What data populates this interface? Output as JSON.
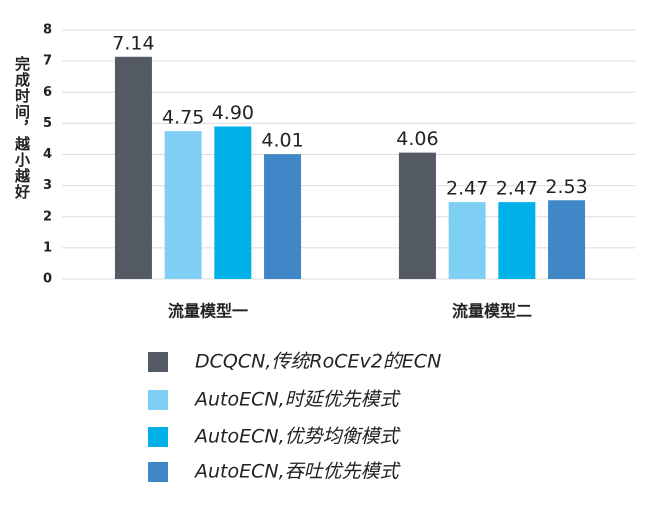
{
  "chart_data": {
    "type": "bar",
    "y_label": "完成时间，越小越好",
    "categories": [
      "流量模型一",
      "流量模型二"
    ],
    "series": [
      {
        "name": "DCQCN,传统RoCEv2的ECN",
        "color": "#545a63",
        "values": [
          7.14,
          4.06
        ],
        "value_labels": [
          "7.14",
          "4.06"
        ]
      },
      {
        "name": "AutoECN,时延优先模式",
        "color": "#7fcff5",
        "values": [
          4.75,
          2.47
        ],
        "value_labels": [
          "4.75",
          "2.47"
        ]
      },
      {
        "name": "AutoECN,优势均衡模式",
        "color": "#00b0e8",
        "values": [
          4.9,
          2.47
        ],
        "value_labels": [
          "4.90",
          "2.47"
        ]
      },
      {
        "name": "AutoECN,吞吐优先模式",
        "color": "#3f87c6",
        "values": [
          4.01,
          2.53
        ],
        "value_labels": [
          "4.01",
          "2.53"
        ]
      }
    ],
    "ylim": [
      0,
      8
    ],
    "yticks": [
      0,
      1,
      2,
      3,
      4,
      5,
      6,
      7,
      8
    ],
    "grid": true
  }
}
